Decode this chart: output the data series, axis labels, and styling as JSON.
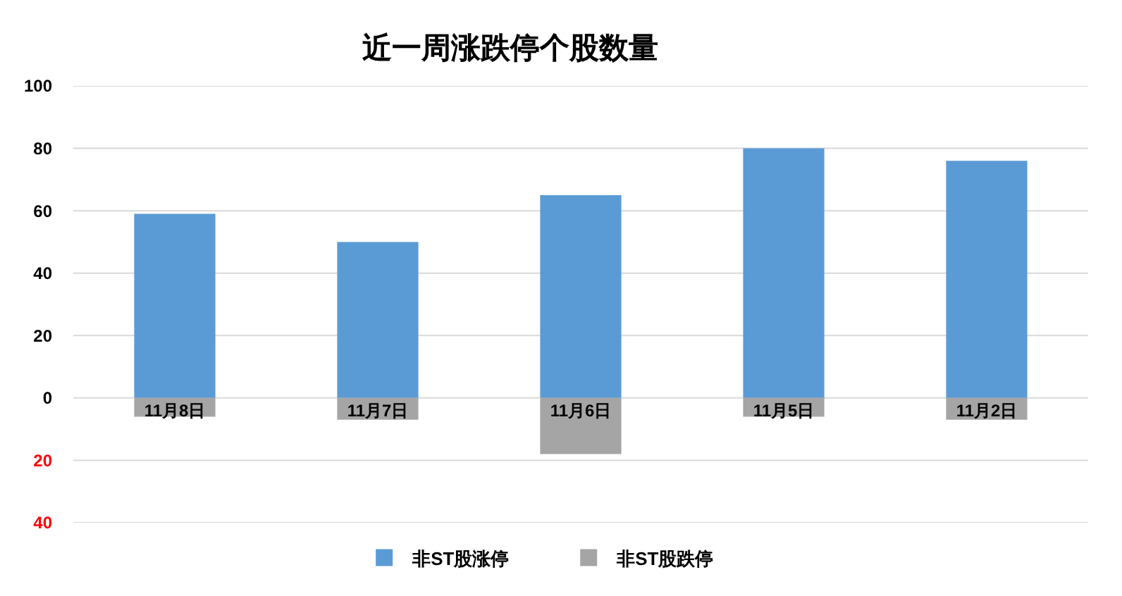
{
  "chart_data": {
    "type": "bar",
    "title": "近一周涨跌停个股数量",
    "categories": [
      "11月8日",
      "11月7日",
      "11月6日",
      "11月5日",
      "11月2日"
    ],
    "series": [
      {
        "name": "非ST股涨停",
        "color": "#5b9bd5",
        "values": [
          59,
          50,
          65,
          80,
          76
        ]
      },
      {
        "name": "非ST股跌停",
        "color": "#a5a5a5",
        "values": [
          -6,
          -7,
          -18,
          -6,
          -7
        ]
      }
    ],
    "stacked": true,
    "ylim": [
      -40,
      100
    ],
    "yticks": [
      {
        "value": -40,
        "label": "40"
      },
      {
        "value": -20,
        "label": "20"
      },
      0,
      20,
      40,
      60,
      80,
      100
    ],
    "grid": "y",
    "legend": "bottom"
  }
}
